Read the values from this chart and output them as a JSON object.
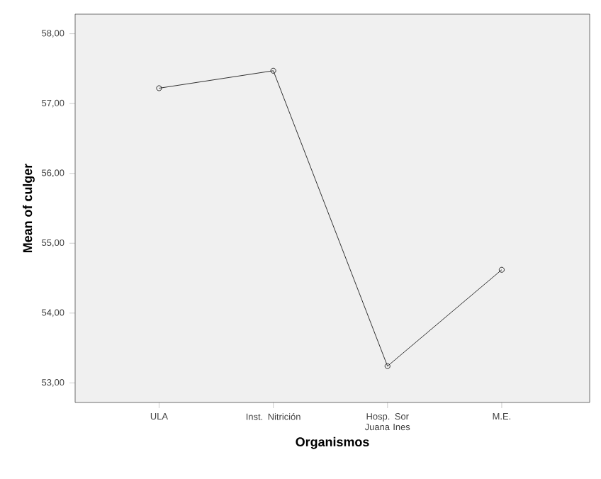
{
  "chart_data": {
    "type": "line",
    "xlabel": "Organismos",
    "ylabel": "Mean of culger",
    "categories": [
      "ULA",
      "Inst. Nitrición",
      "Hosp. Sor Juana Ines",
      "M.E."
    ],
    "values": [
      57.22,
      57.47,
      53.24,
      54.62
    ],
    "color": "#000000",
    "marker": "circle",
    "line_style": "solid",
    "ylim": [
      52.72,
      58.28
    ],
    "yticks": [
      {
        "value": 53,
        "label": "53,00"
      },
      {
        "value": 54,
        "label": "54,00"
      },
      {
        "value": 55,
        "label": "55,00"
      },
      {
        "value": 56,
        "label": "56,00"
      },
      {
        "value": 57,
        "label": "57,00"
      },
      {
        "value": 58,
        "label": "58,00"
      }
    ],
    "tick_labels": "xy"
  }
}
